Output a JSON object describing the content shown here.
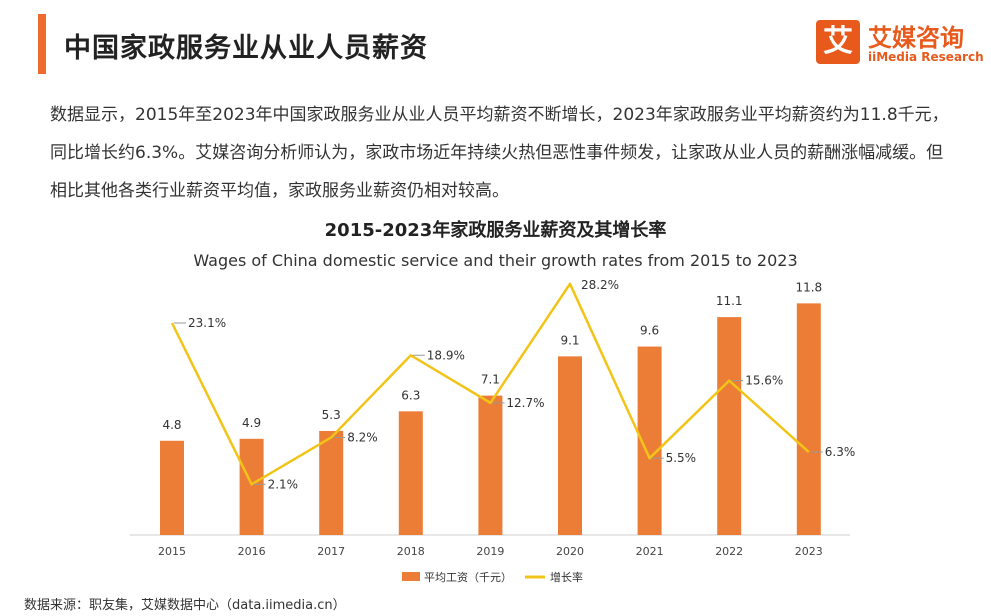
{
  "header": {
    "title": "中国家政服务业从业人员薪资"
  },
  "logo": {
    "mark": "艾",
    "name_cn": "艾媒咨询",
    "name_en": "iiMedia Research"
  },
  "paragraph": "数据显示，2015年至2023年中国家政服务业从业人员平均薪资不断增长，2023年家政服务业平均薪资约为11.8千元，同比增长约6.3%。艾媒咨询分析师认为，家政市场近年持续火热但恶性事件频发，让家政从业人员的薪酬涨幅减缓。但相比其他各类行业薪资平均值，家政服务业薪资仍相对较高。",
  "source": "数据来源：职友集，艾媒数据中心（data.iimedia.cn）",
  "colors": {
    "bar": "#ec7d36",
    "line": "#f2c418",
    "accent": "#ec6b2d"
  },
  "chart_data": {
    "type": "bar+line",
    "title": "2015-2023年家政服务业薪资及其增长率",
    "subtitle": "Wages of China domestic service and their growth rates from 2015 to 2023",
    "categories": [
      "2015",
      "2016",
      "2017",
      "2018",
      "2019",
      "2020",
      "2021",
      "2022",
      "2023"
    ],
    "series": [
      {
        "name": "平均工资（千元）",
        "type": "bar",
        "values": [
          4.8,
          4.9,
          5.3,
          6.3,
          7.1,
          9.1,
          9.6,
          11.1,
          11.8
        ],
        "labels": [
          "4.8",
          "4.9",
          "5.3",
          "6.3",
          "7.1",
          "9.1",
          "9.6",
          "11.1",
          "11.8"
        ]
      },
      {
        "name": "增长率",
        "type": "line",
        "values": [
          23.1,
          2.1,
          8.2,
          18.9,
          12.7,
          28.2,
          5.5,
          15.6,
          6.3
        ],
        "labels": [
          "23.1%",
          "2.1%",
          "8.2%",
          "18.9%",
          "12.7%",
          "28.2%",
          "5.5%",
          "15.6%",
          "6.3%"
        ]
      }
    ],
    "bar_axis_range": [
      0,
      13.5
    ],
    "line_axis_range": [
      -4.5,
      30
    ],
    "legend_position": "bottom-center",
    "grid": false
  }
}
